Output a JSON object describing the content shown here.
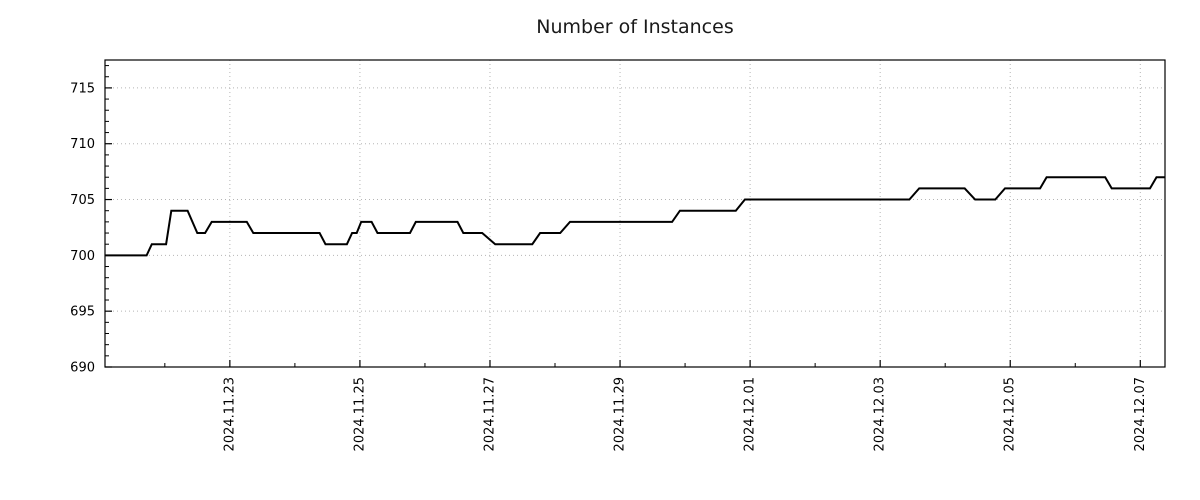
{
  "title": "Number of Instances",
  "chart_data": {
    "type": "line",
    "title": "Number of Instances",
    "xlabel": "",
    "ylabel": "",
    "x_unit": "days since 2024-11-21 00:00",
    "x_range": [
      0.08,
      16.38
    ],
    "y_range": [
      690,
      717.5
    ],
    "y_major_ticks": [
      690,
      695,
      700,
      705,
      710,
      715
    ],
    "y_minor_step": 1,
    "x_major_ticks": [
      {
        "day": 2,
        "label": "2024.11.23"
      },
      {
        "day": 4,
        "label": "2024.11.25"
      },
      {
        "day": 6,
        "label": "2024.11.27"
      },
      {
        "day": 8,
        "label": "2024.11.29"
      },
      {
        "day": 10,
        "label": "2024.12.01"
      },
      {
        "day": 12,
        "label": "2024.12.03"
      },
      {
        "day": 14,
        "label": "2024.12.05"
      },
      {
        "day": 16,
        "label": "2024.12.07"
      }
    ],
    "x_minor_step_days": 1,
    "grid": {
      "show": true,
      "style": "dotted",
      "color": "#b5b5b5"
    },
    "legend": "none",
    "series": [
      {
        "name": "instances",
        "color": "#000000",
        "line_width": 2,
        "points": [
          [
            0.08,
            700
          ],
          [
            0.72,
            700
          ],
          [
            0.8,
            701
          ],
          [
            1.02,
            701
          ],
          [
            1.1,
            704
          ],
          [
            1.35,
            704
          ],
          [
            1.5,
            702
          ],
          [
            1.62,
            702
          ],
          [
            1.72,
            703
          ],
          [
            2.26,
            703
          ],
          [
            2.36,
            702
          ],
          [
            3.38,
            702
          ],
          [
            3.47,
            701
          ],
          [
            3.8,
            701
          ],
          [
            3.88,
            702
          ],
          [
            3.95,
            702
          ],
          [
            4.02,
            703
          ],
          [
            4.18,
            703
          ],
          [
            4.27,
            702
          ],
          [
            4.77,
            702
          ],
          [
            4.86,
            703
          ],
          [
            5.5,
            703
          ],
          [
            5.59,
            702
          ],
          [
            5.88,
            702
          ],
          [
            6.08,
            701
          ],
          [
            6.65,
            701
          ],
          [
            6.77,
            702
          ],
          [
            7.08,
            702
          ],
          [
            7.23,
            703
          ],
          [
            8.8,
            703
          ],
          [
            8.92,
            704
          ],
          [
            9.78,
            704
          ],
          [
            9.92,
            705
          ],
          [
            12.45,
            705
          ],
          [
            12.6,
            706
          ],
          [
            13.3,
            706
          ],
          [
            13.46,
            705
          ],
          [
            13.77,
            705
          ],
          [
            13.92,
            706
          ],
          [
            14.46,
            706
          ],
          [
            14.56,
            707
          ],
          [
            15.46,
            707
          ],
          [
            15.56,
            706
          ],
          [
            16.15,
            706
          ],
          [
            16.25,
            707
          ],
          [
            16.38,
            707
          ]
        ]
      }
    ]
  }
}
